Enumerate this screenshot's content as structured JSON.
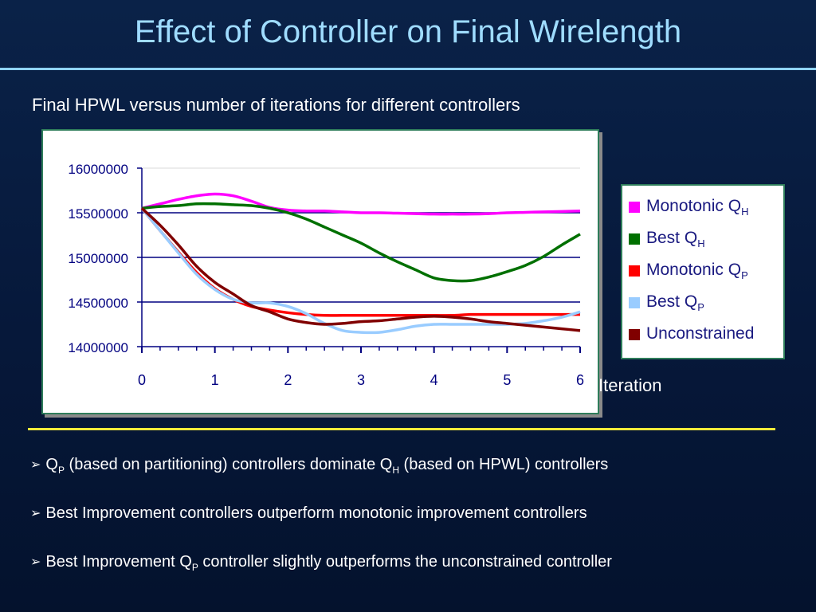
{
  "slide": {
    "title": "Effect of Controller on Final Wirelength",
    "subtitle": "Final HPWL versus number of iterations for different controllers"
  },
  "bullets": [
    {
      "arrow": "➢",
      "parts": [
        {
          "text": "Q"
        },
        {
          "sub": "P"
        },
        {
          "text": " (based on partitioning) controllers dominate Q"
        },
        {
          "sub": "H"
        },
        {
          "text": " (based on HPWL) controllers"
        }
      ]
    },
    {
      "arrow": "➢",
      "parts": [
        {
          "text": "Best Improvement controllers outperform monotonic improvement controllers"
        }
      ]
    },
    {
      "arrow": "➢",
      "parts": [
        {
          "text": "Best Improvement Q"
        },
        {
          "sub": "P"
        },
        {
          "text": " controller slightly outperforms the unconstrained controller"
        }
      ]
    }
  ],
  "colors": {
    "title": "#9fdcff",
    "divider": "#f2ea3a",
    "legend_text": "#1a1a80"
  },
  "chart_data": {
    "type": "line",
    "x": [
      0,
      0.25,
      0.5,
      0.75,
      1,
      1.25,
      1.5,
      1.75,
      2,
      2.25,
      2.5,
      2.75,
      3,
      3.25,
      3.5,
      3.75,
      4,
      4.25,
      4.5,
      4.75,
      5,
      5.25,
      5.5,
      5.75,
      6
    ],
    "series": [
      {
        "name": "Monotonic Q",
        "sub": "H",
        "color": "#ff00ff",
        "values": [
          15550000,
          15600000,
          15650000,
          15690000,
          15710000,
          15690000,
          15630000,
          15560000,
          15530000,
          15520000,
          15520000,
          15510000,
          15500000,
          15500000,
          15495000,
          15490000,
          15485000,
          15485000,
          15485000,
          15490000,
          15500000,
          15505000,
          15510000,
          15515000,
          15520000
        ]
      },
      {
        "name": "Best Q",
        "sub": "H",
        "color": "#007000",
        "values": [
          15550000,
          15570000,
          15580000,
          15600000,
          15600000,
          15590000,
          15580000,
          15550000,
          15500000,
          15430000,
          15340000,
          15250000,
          15160000,
          15050000,
          14950000,
          14860000,
          14770000,
          14740000,
          14740000,
          14780000,
          14840000,
          14910000,
          15010000,
          15140000,
          15260000
        ]
      },
      {
        "name": "Monotonic Q",
        "sub": "P",
        "color": "#ff0000",
        "values": [
          15550000,
          15300000,
          15060000,
          14830000,
          14650000,
          14530000,
          14450000,
          14410000,
          14380000,
          14360000,
          14350000,
          14350000,
          14350000,
          14350000,
          14350000,
          14350000,
          14350000,
          14350000,
          14360000,
          14360000,
          14360000,
          14360000,
          14360000,
          14360000,
          14360000
        ]
      },
      {
        "name": "Best Q",
        "sub": "P",
        "color": "#99ccff",
        "values": [
          15550000,
          15300000,
          15050000,
          14810000,
          14640000,
          14530000,
          14490000,
          14490000,
          14450000,
          14370000,
          14260000,
          14180000,
          14160000,
          14160000,
          14190000,
          14230000,
          14250000,
          14250000,
          14250000,
          14250000,
          14250000,
          14260000,
          14290000,
          14330000,
          14390000
        ]
      },
      {
        "name": "Unconstrained",
        "sub": "",
        "color": "#800000",
        "values": [
          15550000,
          15360000,
          15140000,
          14900000,
          14720000,
          14590000,
          14460000,
          14390000,
          14310000,
          14270000,
          14250000,
          14260000,
          14280000,
          14290000,
          14310000,
          14330000,
          14340000,
          14330000,
          14310000,
          14280000,
          14260000,
          14240000,
          14220000,
          14200000,
          14180000
        ]
      }
    ],
    "xlabel": "Iteration",
    "ylabel": "",
    "xlim": [
      0,
      6
    ],
    "ylim": [
      14000000,
      16000000
    ],
    "x_ticks": [
      "0",
      "1",
      "2",
      "3",
      "4",
      "5",
      "6"
    ],
    "y_ticks": [
      "14000000",
      "14500000",
      "15000000",
      "15500000",
      "16000000"
    ],
    "grid": true,
    "legend": "right"
  }
}
